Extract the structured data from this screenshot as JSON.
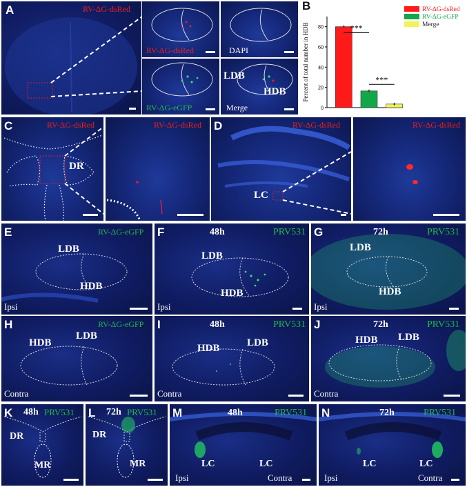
{
  "panels": {
    "A": {
      "label": "A",
      "dsred": "RV-ΔG-dsRed",
      "inset_dsred": "RV-ΔG-dsRed",
      "dapi": "DAPI",
      "egfp": "RV-ΔG-eGFP",
      "ldb": "LDB",
      "hdb": "HDB",
      "merge": "Merge"
    },
    "B": {
      "label": "B"
    },
    "C": {
      "label": "C",
      "left": "RV-ΔG-dsRed",
      "right": "RV-ΔG-dsRed",
      "region": "DR"
    },
    "D": {
      "label": "D",
      "left": "RV-ΔG-dsRed",
      "right": "RV-ΔG-dsRed",
      "region": "LC"
    },
    "E": {
      "label": "E",
      "marker": "RV-ΔG-eGFP",
      "ldb": "LDB",
      "hdb": "HDB",
      "side": "Ipsi"
    },
    "F": {
      "label": "F",
      "time": "48h",
      "marker": "PRV531",
      "ldb": "LDB",
      "hdb": "HDB",
      "side": "Ipsi"
    },
    "G": {
      "label": "G",
      "time": "72h",
      "marker": "PRV531",
      "ldb": "LDB",
      "hdb": "HDB",
      "side": "Ipsi"
    },
    "H": {
      "label": "H",
      "marker": "RV-ΔG-eGFP",
      "hdb": "HDB",
      "ldb": "LDB",
      "side": "Contra"
    },
    "I": {
      "label": "I",
      "time": "48h",
      "marker": "PRV531",
      "hdb": "HDB",
      "ldb": "LDB",
      "side": "Contra"
    },
    "J": {
      "label": "J",
      "time": "72h",
      "marker": "PRV531",
      "hdb": "HDB",
      "ldb": "LDB",
      "side": "Contra"
    },
    "K": {
      "label": "K",
      "time": "48h",
      "marker": "PRV531",
      "dr": "DR",
      "mr": "MR"
    },
    "L": {
      "label": "L",
      "time": "72h",
      "marker": "PRV531",
      "dr": "DR",
      "mr": "MR"
    },
    "M": {
      "label": "M",
      "time": "48h",
      "marker": "PRV531",
      "lc1": "LC",
      "lc2": "LC",
      "ipsi": "Ipsi",
      "contra": "Contra"
    },
    "N": {
      "label": "N",
      "time": "72h",
      "marker": "PRV531",
      "lc1": "LC",
      "lc2": "LC",
      "ipsi": "Ipsi",
      "contra": "Contra"
    }
  },
  "chart_data": {
    "type": "bar",
    "ylabel": "Percent of total number in HDB",
    "ylim": [
      0,
      90
    ],
    "yticks": [
      0,
      20,
      40,
      60,
      80
    ],
    "categories": [
      "RV-ΔG-dsRed",
      "RV-ΔG-eGFP",
      "Merge"
    ],
    "values": [
      80,
      16.5,
      3.5
    ],
    "colors": [
      "#ff1a1a",
      "#12a84a",
      "#f2f25a"
    ],
    "legend": [
      {
        "name": "RV-ΔG-dsRed",
        "color": "#ff1a1a"
      },
      {
        "name": "RV-ΔG-eGFP",
        "color": "#12a84a"
      },
      {
        "name": "Merge",
        "color": "#f2f25a"
      }
    ],
    "annotations": [
      "***",
      "***"
    ]
  }
}
